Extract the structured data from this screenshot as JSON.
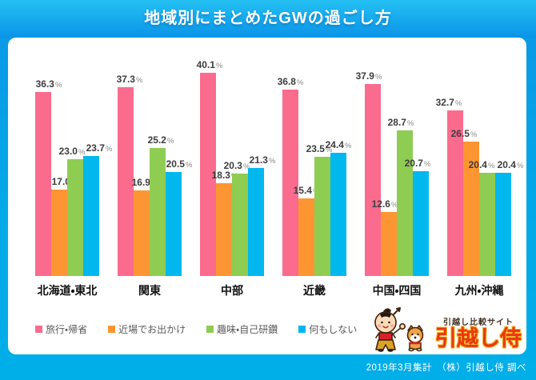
{
  "header": {
    "title": "地域別にまとめたGWの過ごし方"
  },
  "chart_data": {
    "type": "bar",
    "title": "地域別にまとめたGWの過ごし方",
    "categories": [
      "北海道・東北",
      "関東",
      "中部",
      "近畿",
      "中国・四国",
      "九州・沖縄"
    ],
    "series": [
      {
        "name": "旅行・帰省",
        "color": "#FB6B8E",
        "values": [
          36.3,
          37.3,
          40.1,
          36.8,
          37.9,
          32.7
        ]
      },
      {
        "name": "近場でお出かけ",
        "color": "#FD9632",
        "values": [
          17.0,
          16.9,
          18.3,
          15.4,
          12.6,
          26.5
        ]
      },
      {
        "name": "趣味・自己研鑽",
        "color": "#8FCC52",
        "values": [
          23.0,
          25.2,
          20.3,
          23.5,
          28.7,
          20.4
        ]
      },
      {
        "name": "何もしない",
        "color": "#00B7EE",
        "values": [
          23.7,
          20.5,
          21.3,
          24.4,
          20.7,
          20.4
        ]
      }
    ],
    "value_suffix": "%",
    "ylim": [
      0,
      42
    ],
    "grid": false,
    "legend_position": "bottom",
    "label_dx": [
      [
        7,
        7,
        -4,
        10
      ],
      [
        5,
        4,
        4,
        7
      ],
      [
        2,
        1,
        -4,
        8
      ],
      [
        0,
        0,
        -4,
        0
      ],
      [
        -5,
        -5,
        -5,
        -4
      ],
      [
        -8,
        -9,
        -7,
        9
      ]
    ]
  },
  "logo": {
    "tagline": "引越し比較サイト",
    "brand": "引越し侍",
    "brand_color": "#E8380C",
    "mascot": "samurai-boy-and-shiba-dog"
  },
  "footer": {
    "note": "2019年3月集計　（株）引越し侍 調べ"
  }
}
